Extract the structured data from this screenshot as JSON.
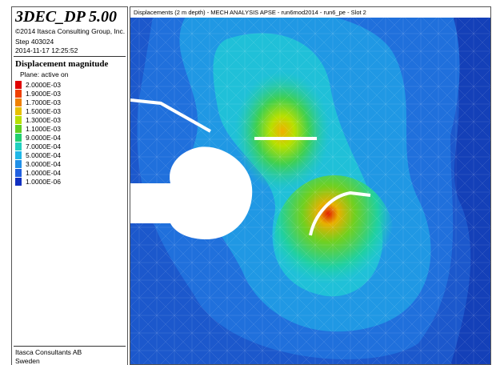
{
  "header": {
    "title": "3DEC_DP 5.00",
    "copyright": "©2014 Itasca Consulting Group, Inc.",
    "step": "Step 403024",
    "date": "2014-11-17 12:25:52"
  },
  "legend": {
    "title": "Displacement magnitude",
    "subtitle": "Plane: active on",
    "items": [
      {
        "label": "2.0000E-03",
        "color": "#e00000"
      },
      {
        "label": "1.9000E-03",
        "color": "#f04000"
      },
      {
        "label": "1.7000E-03",
        "color": "#f08000"
      },
      {
        "label": "1.5000E-03",
        "color": "#e8c000"
      },
      {
        "label": "1.3000E-03",
        "color": "#b8e000"
      },
      {
        "label": "1.1000E-03",
        "color": "#60d020"
      },
      {
        "label": "9.0000E-04",
        "color": "#20d070"
      },
      {
        "label": "7.0000E-04",
        "color": "#20d0c0"
      },
      {
        "label": "5.0000E-04",
        "color": "#20b8e8"
      },
      {
        "label": "3.0000E-04",
        "color": "#2090e8"
      },
      {
        "label": "1.0000E-04",
        "color": "#2060e0"
      },
      {
        "label": "1.0000E-06",
        "color": "#1030c0"
      }
    ]
  },
  "footer": {
    "company": "Itasca Consultants AB",
    "country": "Sweden"
  },
  "plot": {
    "caption": "Displacements (2 m depth) - MECH ANALYSIS APSE - run6mod2014 - run6_pe - Slot 2"
  }
}
